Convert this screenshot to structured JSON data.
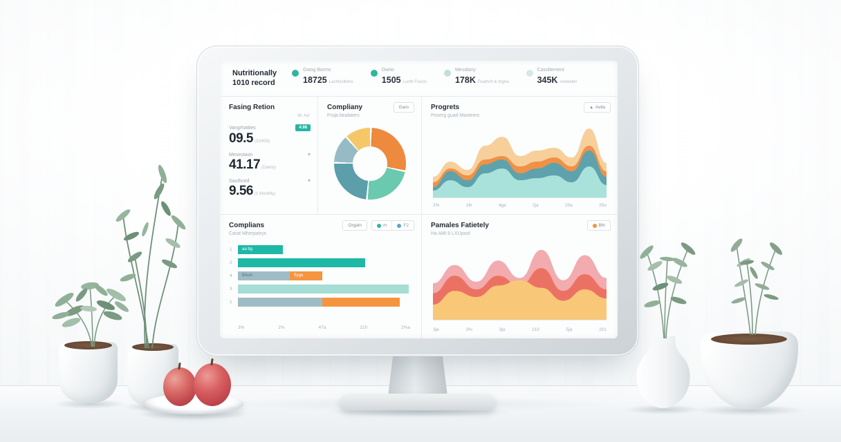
{
  "dashboard": {
    "brand": {
      "line1": "Nutritionally",
      "line2": "1010 record"
    },
    "header_stats": [
      {
        "label": "Gwog Borms",
        "value": "18725",
        "suffix": "Lachtvslbdns",
        "dot_color": "#2fb5a2"
      },
      {
        "label": "Owrio",
        "value": "1505",
        "suffix": "Lunth Fusios",
        "dot_color": "#2fb5a2"
      },
      {
        "label": "Mevalany",
        "value": "178K",
        "suffix": "Featrtch & drgna",
        "dot_color": "#bfe0db"
      },
      {
        "label": "Casoltement",
        "value": "345K",
        "suffix": "snoweitin",
        "dot_color": "#d7e8e4"
      }
    ],
    "panels": {
      "metrics": {
        "title": "Fasing Retion",
        "corner_note": "W. Ad",
        "items": [
          {
            "label": "Vangrhatties",
            "badge": "4.98",
            "value": "09.5",
            "unit": "(32/833)"
          },
          {
            "label": "Mesestaon",
            "chevron": true,
            "value": "41.17",
            "unit": "(Dainty)"
          },
          {
            "label": "Sauthced",
            "chevron": true,
            "value": "9.56",
            "unit": "(1 Monthly)"
          }
        ]
      },
      "donut": {
        "title": "Compliany",
        "subtitle": "Froja bealaters",
        "button": "Garo"
      },
      "progress": {
        "title": "Progrets",
        "subtitle": "Poserg guad Masteers",
        "button": "Avila"
      },
      "bars": {
        "title": "Complians",
        "subtitle": "Carat Mherpatrys",
        "button": "Orgaln",
        "legend": [
          {
            "label": "m",
            "dot_color": "#2fb5a2"
          },
          {
            "label": "F2",
            "dot_color": "#56a8ce"
          }
        ]
      },
      "area2": {
        "title": "Pamales Fatietely",
        "subtitle": "Ha Altlt 8 LXUpool",
        "button": "Bhi",
        "button_dot_color": "#f0953f"
      }
    }
  },
  "chart_data": [
    {
      "type": "pie",
      "title": "Compliany",
      "donut": true,
      "labels": [
        "orange",
        "green",
        "teal",
        "bluegray",
        "yellow"
      ],
      "values": [
        28,
        23,
        24,
        13,
        12
      ],
      "colors": [
        "#ED8A3E",
        "#6AC9AF",
        "#5C9EAA",
        "#97BBC4",
        "#F6C766"
      ],
      "legend_position": "none"
    },
    {
      "type": "area",
      "title": "Progrets",
      "x": [
        "2%",
        "1lh",
        "4ga",
        "2ja",
        "25a",
        "25o"
      ],
      "ylim": [
        0,
        100
      ],
      "grid": false,
      "series": [
        {
          "name": "outer-light-orange",
          "color": "#F7CF9B",
          "values": [
            30,
            52,
            40,
            75,
            88,
            60,
            68,
            72,
            58,
            100,
            50
          ]
        },
        {
          "name": "orange",
          "color": "#EF9147",
          "values": [
            22,
            42,
            32,
            55,
            60,
            45,
            52,
            58,
            45,
            75,
            38
          ]
        },
        {
          "name": "teal",
          "color": "#5EA2AD",
          "values": [
            15,
            38,
            25,
            48,
            55,
            35,
            42,
            50,
            38,
            68,
            30
          ]
        },
        {
          "name": "mint",
          "color": "#A9E2DA",
          "values": [
            10,
            25,
            15,
            35,
            42,
            25,
            28,
            32,
            22,
            45,
            18
          ]
        }
      ]
    },
    {
      "type": "bar",
      "title": "Complians",
      "orientation": "horizontal",
      "x_ticks": [
        "3%",
        "2%",
        "47a",
        "210",
        "2%a"
      ],
      "rows": [
        {
          "label": "1",
          "segments": [
            {
              "value": 26,
              "color": "#1EB8A6",
              "text": "aa bg",
              "text_color": "#ffffff"
            }
          ]
        },
        {
          "label": "2",
          "segments": [
            {
              "value": 74,
              "color": "#1EB8A6"
            }
          ]
        },
        {
          "label": "4",
          "segments": [
            {
              "value": 30,
              "color": "#9FBCC6",
              "text": "BAsA",
              "text_color": "#5a6b74"
            },
            {
              "value": 19,
              "color": "#F5953F",
              "text": "Syga",
              "text_color": "#ffffff"
            }
          ]
        },
        {
          "label": "3",
          "segments": [
            {
              "value": 99,
              "color": "#A6DDD4"
            }
          ]
        },
        {
          "label": "1",
          "segments": [
            {
              "value": 49,
              "color": "#9FBCC6"
            },
            {
              "value": 45,
              "color": "#F5953F"
            }
          ]
        }
      ]
    },
    {
      "type": "area",
      "title": "Pamales Fatietely",
      "x": [
        "3ja",
        "2%",
        "3ja",
        "210",
        "5ja",
        "201"
      ],
      "ylim": [
        0,
        100
      ],
      "grid": false,
      "series": [
        {
          "name": "pink",
          "color": "#F2ABAE",
          "values": [
            48,
            72,
            50,
            78,
            55,
            92,
            52,
            85,
            55
          ]
        },
        {
          "name": "coral",
          "color": "#EB7263",
          "values": [
            35,
            58,
            40,
            58,
            45,
            68,
            38,
            60,
            40
          ]
        },
        {
          "name": "yellow",
          "color": "#F8C878",
          "values": [
            20,
            38,
            30,
            45,
            52,
            42,
            25,
            40,
            28
          ]
        }
      ]
    }
  ]
}
